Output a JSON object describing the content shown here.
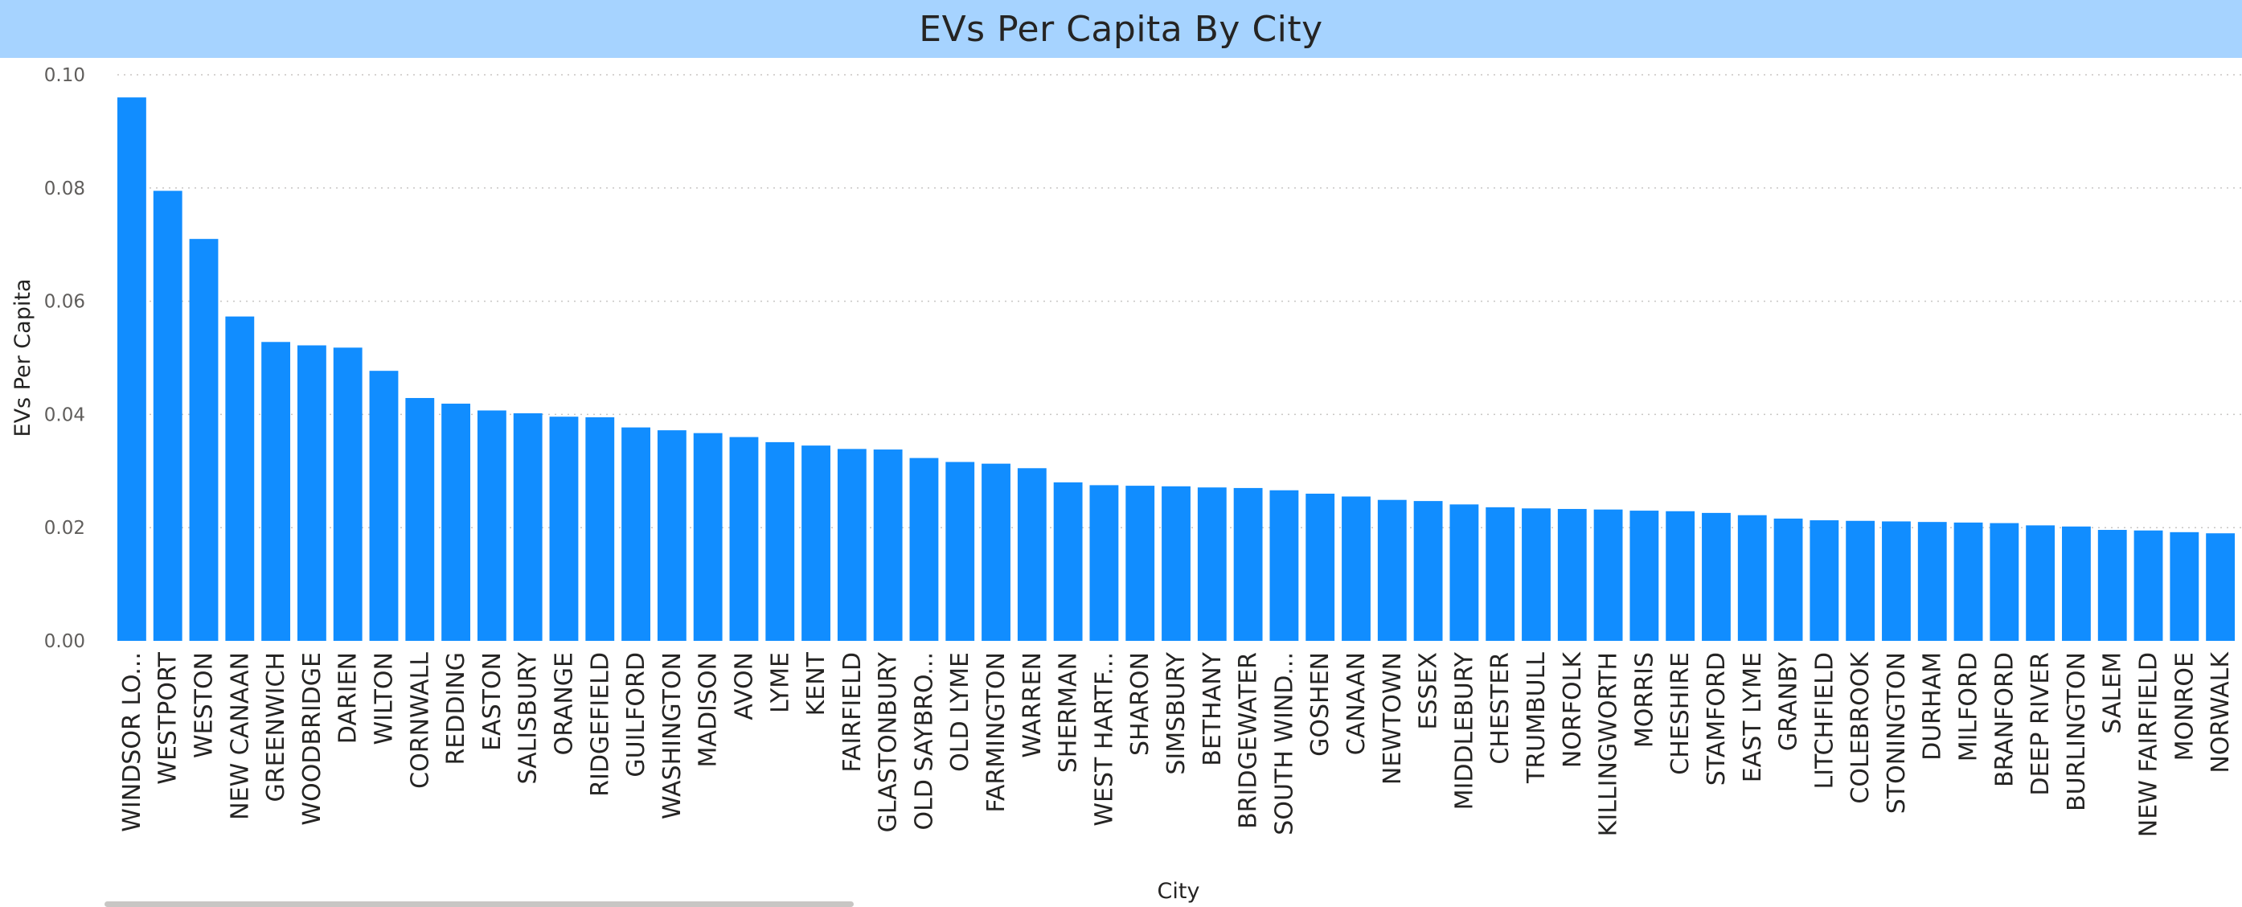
{
  "chart_data": {
    "type": "bar",
    "title": "EVs Per Capita By City",
    "xlabel": "City",
    "ylabel": "EVs Per Capita",
    "ylim": [
      0,
      0.1
    ],
    "yticks": [
      "0.00",
      "0.02",
      "0.04",
      "0.06",
      "0.08",
      "0.10"
    ],
    "grid": true,
    "bar_color": "#118dff",
    "categories": [
      "WINDSOR LO...",
      "WESTPORT",
      "WESTON",
      "NEW CANAAN",
      "GREENWICH",
      "WOODBRIDGE",
      "DARIEN",
      "WILTON",
      "CORNWALL",
      "REDDING",
      "EASTON",
      "SALISBURY",
      "ORANGE",
      "RIDGEFIELD",
      "GUILFORD",
      "WASHINGTON",
      "MADISON",
      "AVON",
      "LYME",
      "KENT",
      "FAIRFIELD",
      "GLASTONBURY",
      "OLD SAYBRO...",
      "OLD LYME",
      "FARMINGTON",
      "WARREN",
      "SHERMAN",
      "WEST HARTF...",
      "SHARON",
      "SIMSBURY",
      "BETHANY",
      "BRIDGEWATER",
      "SOUTH WIND...",
      "GOSHEN",
      "CANAAN",
      "NEWTOWN",
      "ESSEX",
      "MIDDLEBURY",
      "CHESTER",
      "TRUMBULL",
      "NORFOLK",
      "KILLINGWORTH",
      "MORRIS",
      "CHESHIRE",
      "STAMFORD",
      "EAST LYME",
      "GRANBY",
      "LITCHFIELD",
      "COLEBROOK",
      "STONINGTON",
      "DURHAM",
      "MILFORD",
      "BRANFORD",
      "DEEP RIVER",
      "BURLINGTON",
      "SALEM",
      "NEW FAIRFIELD",
      "MONROE",
      "NORWALK"
    ],
    "values": [
      0.096,
      0.0795,
      0.071,
      0.0573,
      0.0528,
      0.0522,
      0.0518,
      0.0477,
      0.0429,
      0.0419,
      0.0407,
      0.0402,
      0.0396,
      0.0395,
      0.0377,
      0.0372,
      0.0367,
      0.036,
      0.0351,
      0.0345,
      0.0339,
      0.0338,
      0.0323,
      0.0316,
      0.0313,
      0.0305,
      0.028,
      0.0275,
      0.0274,
      0.0273,
      0.0271,
      0.027,
      0.0266,
      0.026,
      0.0255,
      0.0249,
      0.0247,
      0.0241,
      0.0236,
      0.0234,
      0.0233,
      0.0232,
      0.023,
      0.0229,
      0.0226,
      0.0222,
      0.0216,
      0.0213,
      0.0212,
      0.0211,
      0.021,
      0.0209,
      0.0208,
      0.0204,
      0.0202,
      0.0196,
      0.0195,
      0.0192,
      0.019
    ]
  }
}
